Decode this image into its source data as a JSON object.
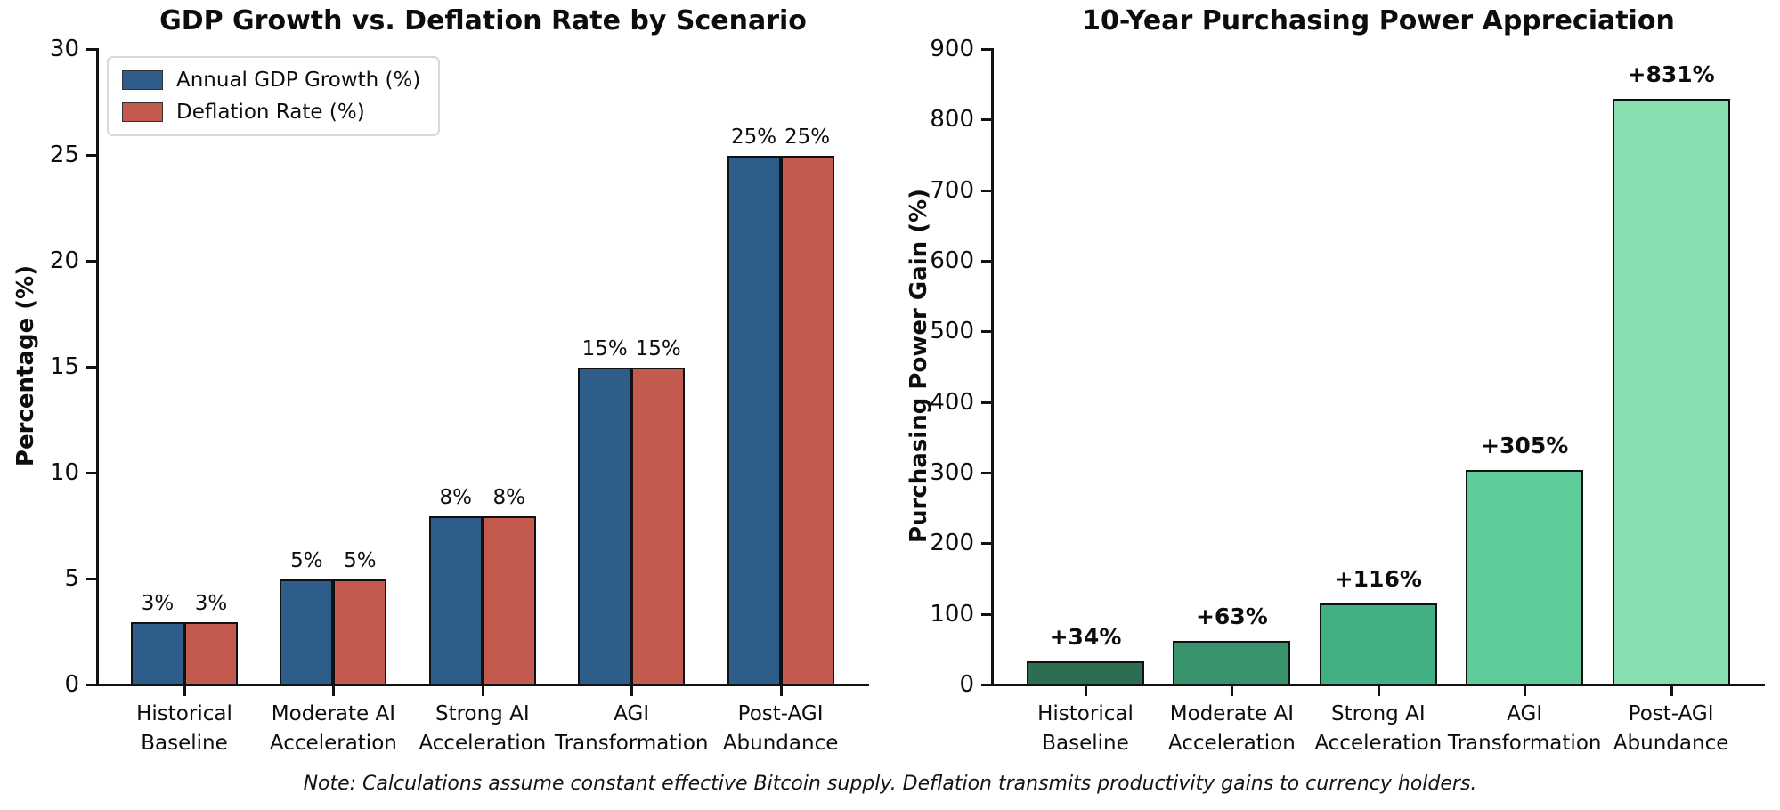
{
  "figure": {
    "note": "Note: Calculations assume constant effective Bitcoin supply. Deflation transmits productivity gains to currency holders.",
    "background": "#ffffff"
  },
  "chart_data": [
    {
      "type": "bar",
      "title": "GDP Growth vs. Deflation Rate by Scenario",
      "ylabel": "Percentage (%)",
      "xlabel": "",
      "ylim": [
        0,
        30
      ],
      "yticks": [
        0,
        5,
        10,
        15,
        20,
        25,
        30
      ],
      "grid": false,
      "legend_position": "upper-left",
      "categories": [
        "Historical\nBaseline",
        "Moderate AI\nAcceleration",
        "Strong AI\nAcceleration",
        "AGI\nTransformation",
        "Post-AGI\nAbundance"
      ],
      "series": [
        {
          "name": "Annual GDP Growth (%)",
          "color": "#2F5D8A",
          "values": [
            3,
            5,
            8,
            15,
            25
          ],
          "labels": [
            "3%",
            "5%",
            "8%",
            "15%",
            "25%"
          ]
        },
        {
          "name": "Deflation Rate (%)",
          "color": "#C25B4D",
          "values": [
            3,
            5,
            8,
            15,
            25
          ],
          "labels": [
            "3%",
            "5%",
            "8%",
            "15%",
            "25%"
          ]
        }
      ],
      "bar_edge_color": "#111111"
    },
    {
      "type": "bar",
      "title": "10-Year Purchasing Power Appreciation",
      "ylabel": "Purchasing Power Gain (%)",
      "xlabel": "",
      "ylim": [
        0,
        900
      ],
      "yticks": [
        0,
        100,
        200,
        300,
        400,
        500,
        600,
        700,
        800,
        900
      ],
      "grid": false,
      "categories": [
        "Historical\nBaseline",
        "Moderate AI\nAcceleration",
        "Strong AI\nAcceleration",
        "AGI\nTransformation",
        "Post-AGI\nAbundance"
      ],
      "values": [
        34,
        63,
        116,
        305,
        831
      ],
      "labels": [
        "+34%",
        "+63%",
        "+116%",
        "+305%",
        "+831%"
      ],
      "bar_colors": [
        "#2B6E51",
        "#38946C",
        "#41B183",
        "#5FCB98",
        "#87DFAF"
      ],
      "bar_edge_color": "#111111"
    }
  ]
}
